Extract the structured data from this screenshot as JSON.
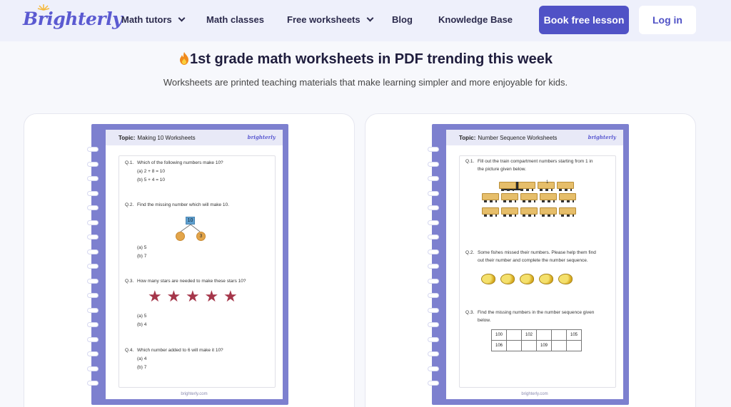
{
  "nav": {
    "logo": "Brighterly",
    "links": [
      "Math tutors",
      "Math classes",
      "Free worksheets",
      "Blog",
      "Knowledge Base"
    ],
    "book_label": "Book free lesson",
    "login_label": "Log in"
  },
  "page": {
    "heading": "1st grade math worksheets in PDF trending this week",
    "subheading": "Worksheets are printed teaching materials that make learning simpler and more enjoyable for kids."
  },
  "worksheets": [
    {
      "topic_label": "Topic:",
      "topic": "Making 10 Worksheets",
      "logo": "brighterly",
      "footer": "brighterly.com",
      "q1": {
        "num": "Q.1.",
        "text": "Which of the following numbers make 10?",
        "a": "(a) 2 + 8 = 10",
        "b": "(b) 5 + 4 = 10"
      },
      "q2": {
        "num": "Q.2.",
        "text": "Find the missing number which will make 10.",
        "top": "10",
        "known": "3",
        "a": "(a) 5",
        "b": "(b) 7"
      },
      "q3": {
        "num": "Q.3.",
        "text": "How many stars are needed to make these stars 10?",
        "stars": 5,
        "a": "(a) 5",
        "b": "(b) 4"
      },
      "q4": {
        "num": "Q.4.",
        "text": "Which number added to 6 will make it 10?",
        "a": "(a) 4",
        "b": "(b) 7"
      }
    },
    {
      "topic_label": "Topic:",
      "topic": "Number Sequence Worksheets",
      "logo": "brighterly",
      "footer": "brighterly.com",
      "q1": {
        "num": "Q.1.",
        "text": "Fill out the train compartment numbers starting from 1 in",
        "text2": "the picture given below.",
        "first_car": "1"
      },
      "q2": {
        "num": "Q.2.",
        "text": "Some fishes missed their numbers. Please help them find",
        "text2": "out their number and complete the number sequence."
      },
      "q3": {
        "num": "Q.3.",
        "text": "Find the missing numbers in the number sequence given",
        "text2": "below.",
        "row1": [
          "100",
          "",
          "102",
          "",
          "",
          "105"
        ],
        "row2": [
          "106",
          "",
          "",
          "109",
          "",
          ""
        ]
      }
    }
  ],
  "colors": {
    "accent": "#5052c6",
    "sheet_border": "#7d80cf",
    "star": "#a5364a"
  }
}
